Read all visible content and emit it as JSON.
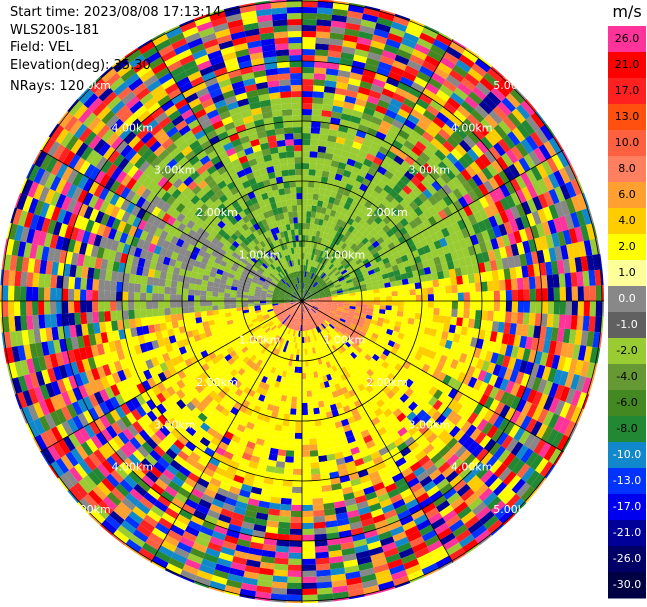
{
  "info": {
    "start_time": "Start time: 2023/08/08 17:13:14",
    "instrument": "WLS200s-181",
    "field": "Field: VEL",
    "elevation": "Elevation(deg): 35.30",
    "nrays": "NRays: 120"
  },
  "colorbar": {
    "unit": "m/s",
    "ticks": [
      "26.0",
      "21.0",
      "17.0",
      "13.0",
      "10.0",
      "8.0",
      "6.0",
      "4.0",
      "2.0",
      "1.0",
      "0.0",
      "-1.0",
      "-2.0",
      "-4.0",
      "-6.0",
      "-8.0",
      "-10.0",
      "-13.0",
      "-17.0",
      "-21.0",
      "-26.0",
      "-30.0"
    ],
    "colors": [
      "#ff3399",
      "#ff0000",
      "#ff2020",
      "#ff5010",
      "#ff6040",
      "#ff8060",
      "#ffa030",
      "#ffcc00",
      "#ffff00",
      "#ffff99",
      "#888888",
      "#606060",
      "#99cc33",
      "#669933",
      "#448822",
      "#228833",
      "#1188cc",
      "#0033ff",
      "#0000ee",
      "#000099",
      "#000066",
      "#000044"
    ]
  },
  "chart_data": {
    "type": "heatmap",
    "projection": "PPI",
    "field": "VEL",
    "unit": "m/s",
    "nrays": 120,
    "elevation_deg": 35.3,
    "range_rings_km": [
      1.0,
      2.0,
      3.0,
      4.0,
      5.0
    ],
    "ring_labels": [
      "1.00km",
      "2.00km",
      "3.00km",
      "4.00km",
      "5.00km"
    ],
    "color_range": [
      -30.0,
      26.0
    ],
    "regions": [
      {
        "description": "near-range sector north/west",
        "value_approx": -4.0
      },
      {
        "description": "near-range sector south/east",
        "value_approx": 2.0
      },
      {
        "description": "far range",
        "value_approx": "noise"
      }
    ]
  }
}
